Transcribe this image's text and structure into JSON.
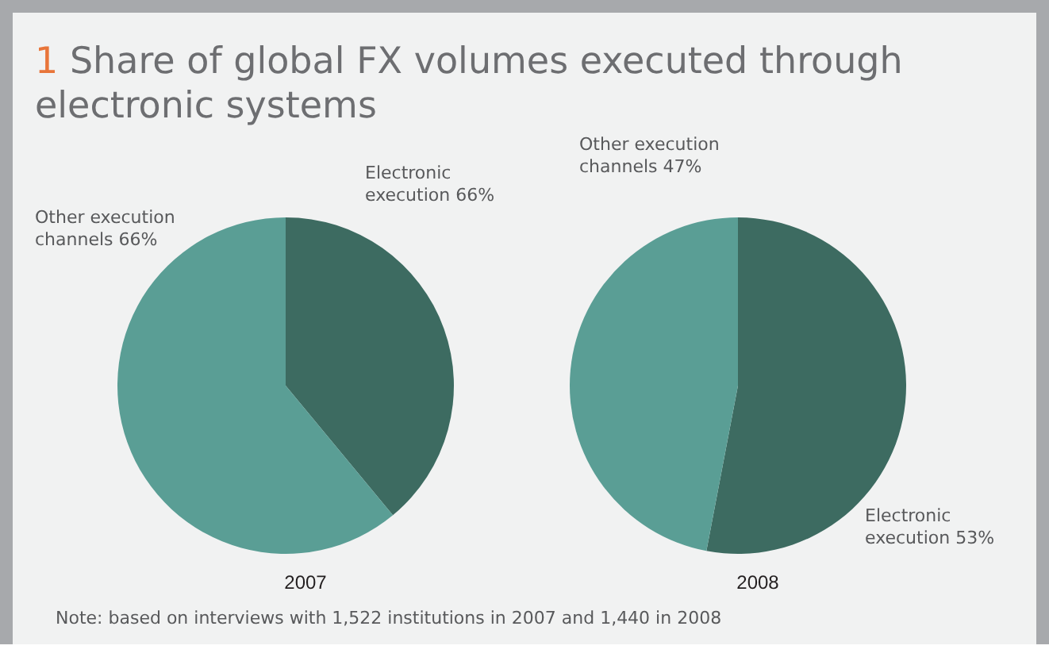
{
  "chart_data": [
    {
      "type": "pie",
      "title": "1 Share of global FX volumes executed through electronic systems",
      "xlabel": "2007",
      "categories": [
        "Electronic execution 66%",
        "Other execution channels 66%"
      ],
      "values": [
        39,
        61
      ],
      "colors": [
        "#3d6b61",
        "#5a9e95"
      ],
      "annotations": [
        "Note: based on interviews with 1,522 institutions in 2007 and 1,440 in 2008"
      ]
    },
    {
      "type": "pie",
      "xlabel": "2008",
      "categories": [
        "Electronic execution 53%",
        "Other execution channels 47%"
      ],
      "values": [
        53,
        47
      ],
      "colors": [
        "#3d6b61",
        "#5a9e95"
      ]
    }
  ]
}
